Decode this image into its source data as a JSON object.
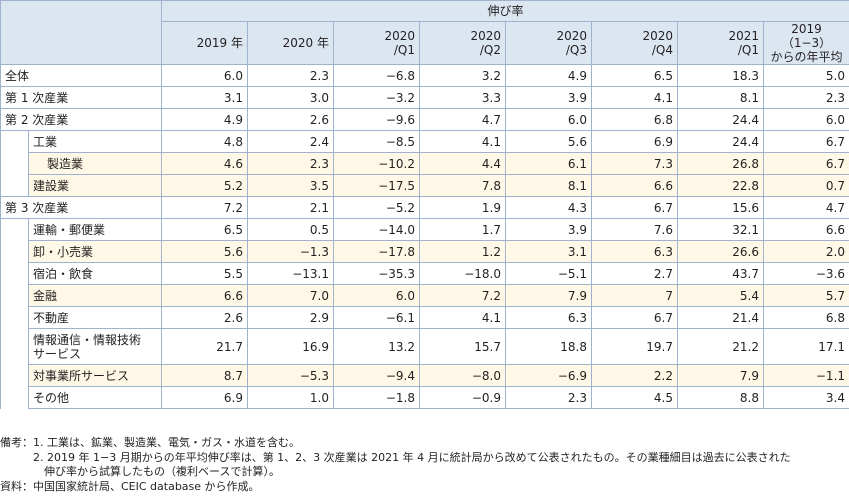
{
  "header": {
    "group_label": "伸び率",
    "columns": [
      "2019 年",
      "2020 年",
      "2020\n/Q1",
      "2020\n/Q2",
      "2020\n/Q3",
      "2020\n/Q4",
      "2021\n/Q1",
      "2019（1−3）\nからの年平均"
    ]
  },
  "rows": [
    {
      "label": "全体",
      "values": [
        "6.0",
        "2.3",
        "−6.8",
        "3.2",
        "4.9",
        "6.5",
        "18.3",
        "5.0"
      ]
    },
    {
      "label": "第 1 次産業",
      "values": [
        "3.1",
        "3.0",
        "−3.2",
        "3.3",
        "3.9",
        "4.1",
        "8.1",
        "2.3"
      ]
    },
    {
      "label": "第 2 次産業",
      "values": [
        "4.9",
        "2.6",
        "−9.6",
        "4.7",
        "6.0",
        "6.8",
        "24.4",
        "6.0"
      ]
    },
    {
      "label": "工業",
      "values": [
        "4.8",
        "2.4",
        "−8.5",
        "4.1",
        "5.6",
        "6.9",
        "24.4",
        "6.7"
      ]
    },
    {
      "label": "製造業",
      "values": [
        "4.6",
        "2.3",
        "−10.2",
        "4.4",
        "6.1",
        "7.3",
        "26.8",
        "6.7"
      ]
    },
    {
      "label": "建設業",
      "values": [
        "5.2",
        "3.5",
        "−17.5",
        "7.8",
        "8.1",
        "6.6",
        "22.8",
        "0.7"
      ]
    },
    {
      "label": "第 3 次産業",
      "values": [
        "7.2",
        "2.1",
        "−5.2",
        "1.9",
        "4.3",
        "6.7",
        "15.6",
        "4.7"
      ]
    },
    {
      "label": "運輸・郵便業",
      "values": [
        "6.5",
        "0.5",
        "−14.0",
        "1.7",
        "3.9",
        "7.6",
        "32.1",
        "6.6"
      ]
    },
    {
      "label": "卸・小売業",
      "values": [
        "5.6",
        "−1.3",
        "−17.8",
        "1.2",
        "3.1",
        "6.3",
        "26.6",
        "2.0"
      ]
    },
    {
      "label": "宿泊・飲食",
      "values": [
        "5.5",
        "−13.1",
        "−35.3",
        "−18.0",
        "−5.1",
        "2.7",
        "43.7",
        "−3.6"
      ]
    },
    {
      "label": "金融",
      "values": [
        "6.6",
        "7.0",
        "6.0",
        "7.2",
        "7.9",
        "7",
        "5.4",
        "5.7"
      ]
    },
    {
      "label": "不動産",
      "values": [
        "2.6",
        "2.9",
        "−6.1",
        "4.1",
        "6.3",
        "6.7",
        "21.4",
        "6.8"
      ]
    },
    {
      "label": "情報通信・情報技術\nサービス",
      "values": [
        "21.7",
        "16.9",
        "13.2",
        "15.7",
        "18.8",
        "19.7",
        "21.2",
        "17.1"
      ]
    },
    {
      "label": "対事業所サービス",
      "values": [
        "8.7",
        "−5.3",
        "−9.4",
        "−8.0",
        "−6.9",
        "2.2",
        "7.9",
        "−1.1"
      ]
    },
    {
      "label": "その他",
      "values": [
        "6.9",
        "1.0",
        "−1.8",
        "−0.9",
        "2.3",
        "4.5",
        "8.8",
        "3.4"
      ]
    }
  ],
  "notes": [
    "備考：1.  工業は、鉱業、製造業、電気・ガス・水道を含む。",
    "　　　2.  2019 年 1−3 月期からの年平均伸び率は、第 1、2、3 次産業は 2021 年 4 月に統計局から改めて公表されたもの。その業種細目は過去に公表された",
    "　　　　伸び率から試算したもの（複利ベースで計算）。",
    "資料：中国国家統計局、CEIC database から作成。"
  ]
}
